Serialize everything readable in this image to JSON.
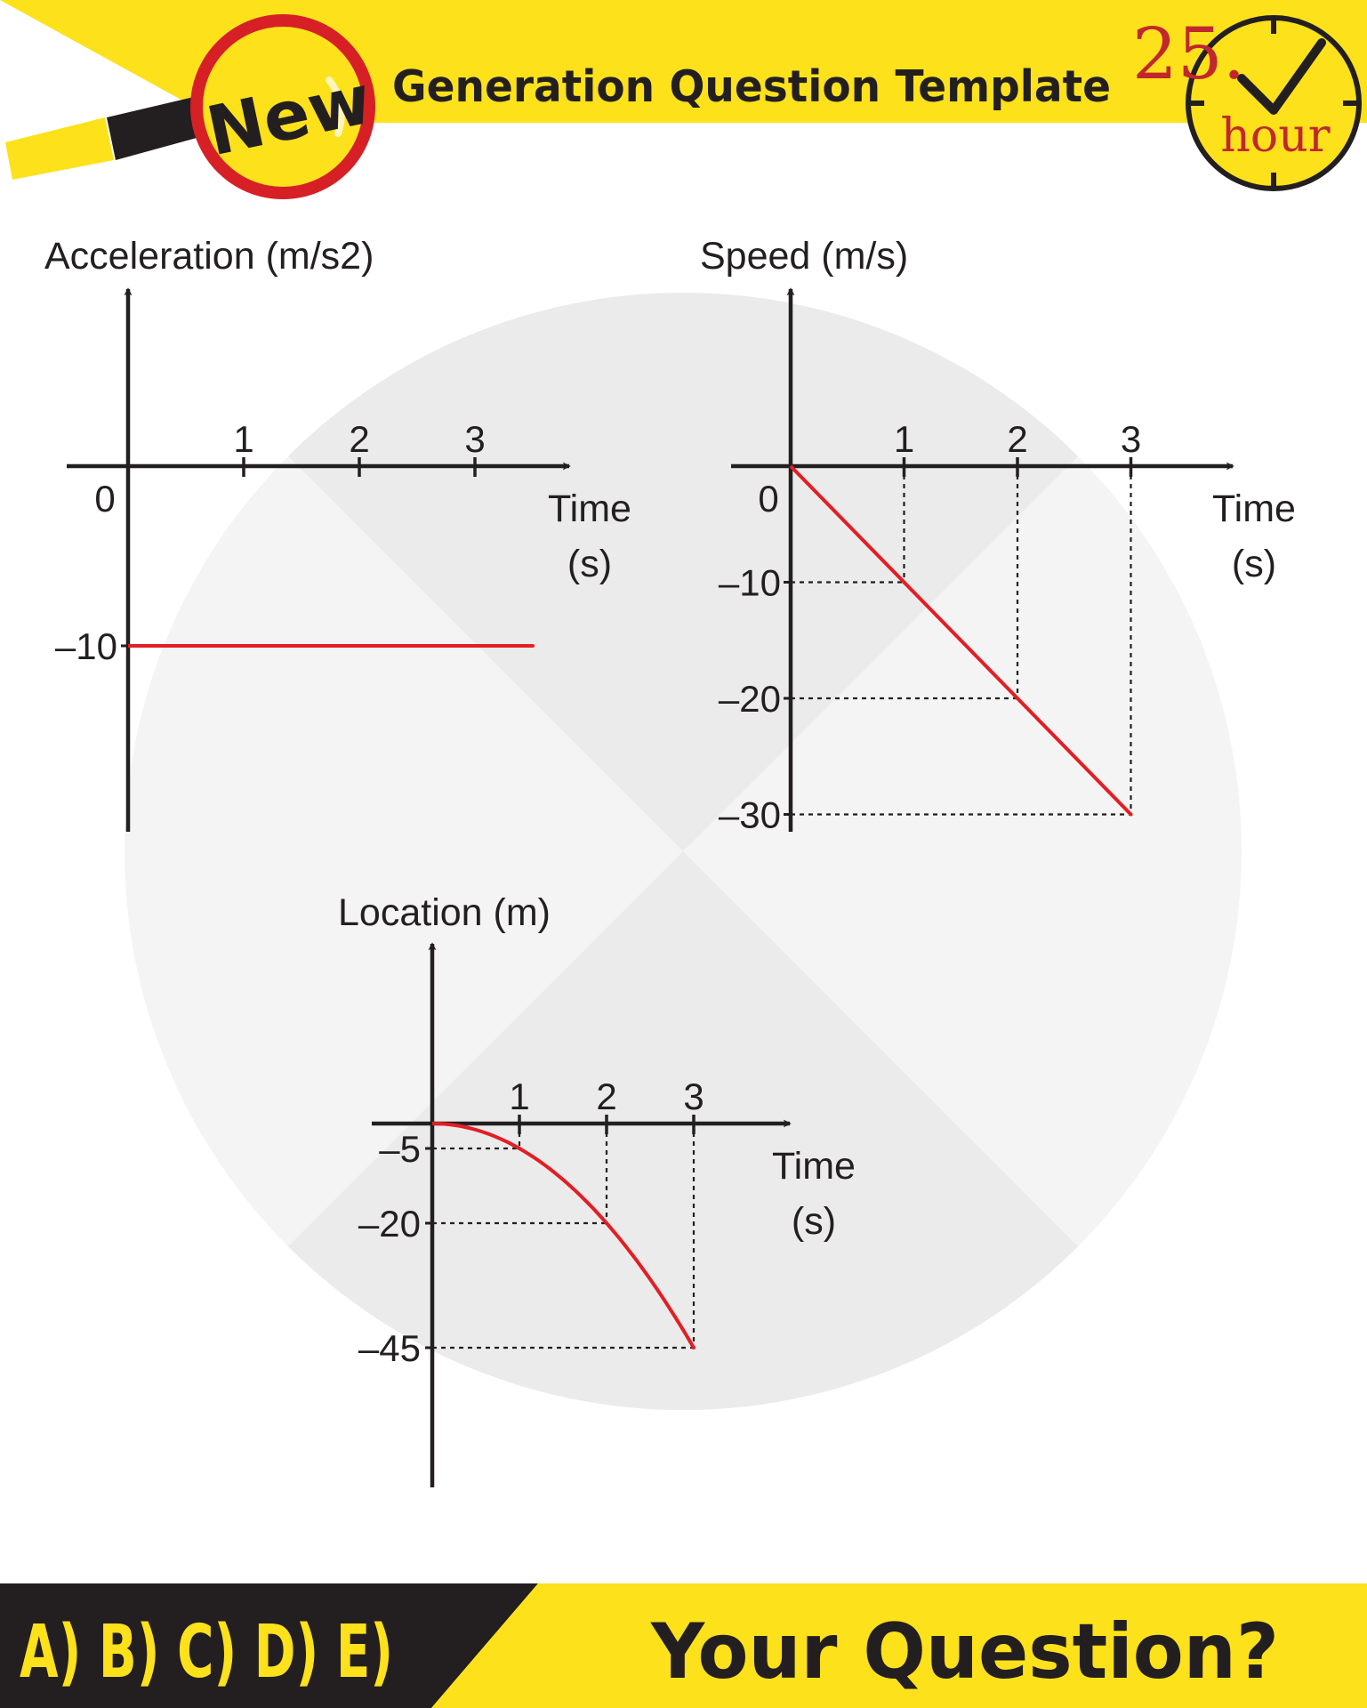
{
  "header": {
    "badge_text": "New",
    "title": "Generation Question Template",
    "timer_number": "25.",
    "timer_unit": "hour"
  },
  "footer": {
    "options_text": "A) B) C) D) E)",
    "question_text": "Your Question?"
  },
  "colors": {
    "header_yellow": "#fde11b",
    "series_red": "#e31e24",
    "axis_dark": "#231f20",
    "footer_dark": "#231f20",
    "backdrop_light": "#f4f4f4",
    "backdrop_dark": "#ebebeb"
  },
  "chart_data": [
    {
      "type": "line",
      "ylabel": "Acceleration (m/s2)",
      "xlabel": "Time",
      "xunit": "(s)",
      "origin_label": "0",
      "x_ticks": [
        1,
        2,
        3
      ],
      "x_tick_labels": [
        "1",
        "2",
        "3"
      ],
      "y_ticks": [
        -10
      ],
      "y_tick_labels": [
        "–10"
      ],
      "series": [
        {
          "x": [
            0,
            3.5
          ],
          "y": [
            -10,
            -10
          ],
          "color": "#e31e24"
        }
      ]
    },
    {
      "type": "line",
      "ylabel": "Speed (m/s)",
      "xlabel": "Time",
      "xunit": "(s)",
      "origin_label": "0",
      "x_ticks": [
        1,
        2,
        3
      ],
      "x_tick_labels": [
        "1",
        "2",
        "3"
      ],
      "y_ticks": [
        -10,
        -20,
        -30
      ],
      "y_tick_labels": [
        "–10",
        "–20",
        "–30"
      ],
      "series": [
        {
          "x": [
            0,
            1,
            2,
            3
          ],
          "y": [
            0,
            -10,
            -20,
            -30
          ],
          "color": "#e31e24"
        }
      ],
      "guides": true
    },
    {
      "type": "line",
      "ylabel": "Location (m)",
      "xlabel": "Time",
      "xunit": "(s)",
      "x_ticks": [
        1,
        2,
        3
      ],
      "x_tick_labels": [
        "1",
        "2",
        "3"
      ],
      "y_ticks": [
        -5,
        -20,
        -45
      ],
      "y_tick_labels": [
        "–5",
        "–20",
        "–45"
      ],
      "series": [
        {
          "x": [
            0,
            1,
            2,
            3
          ],
          "y": [
            0,
            -5,
            -20,
            -45
          ],
          "color": "#e31e24"
        }
      ],
      "guides": true
    }
  ]
}
